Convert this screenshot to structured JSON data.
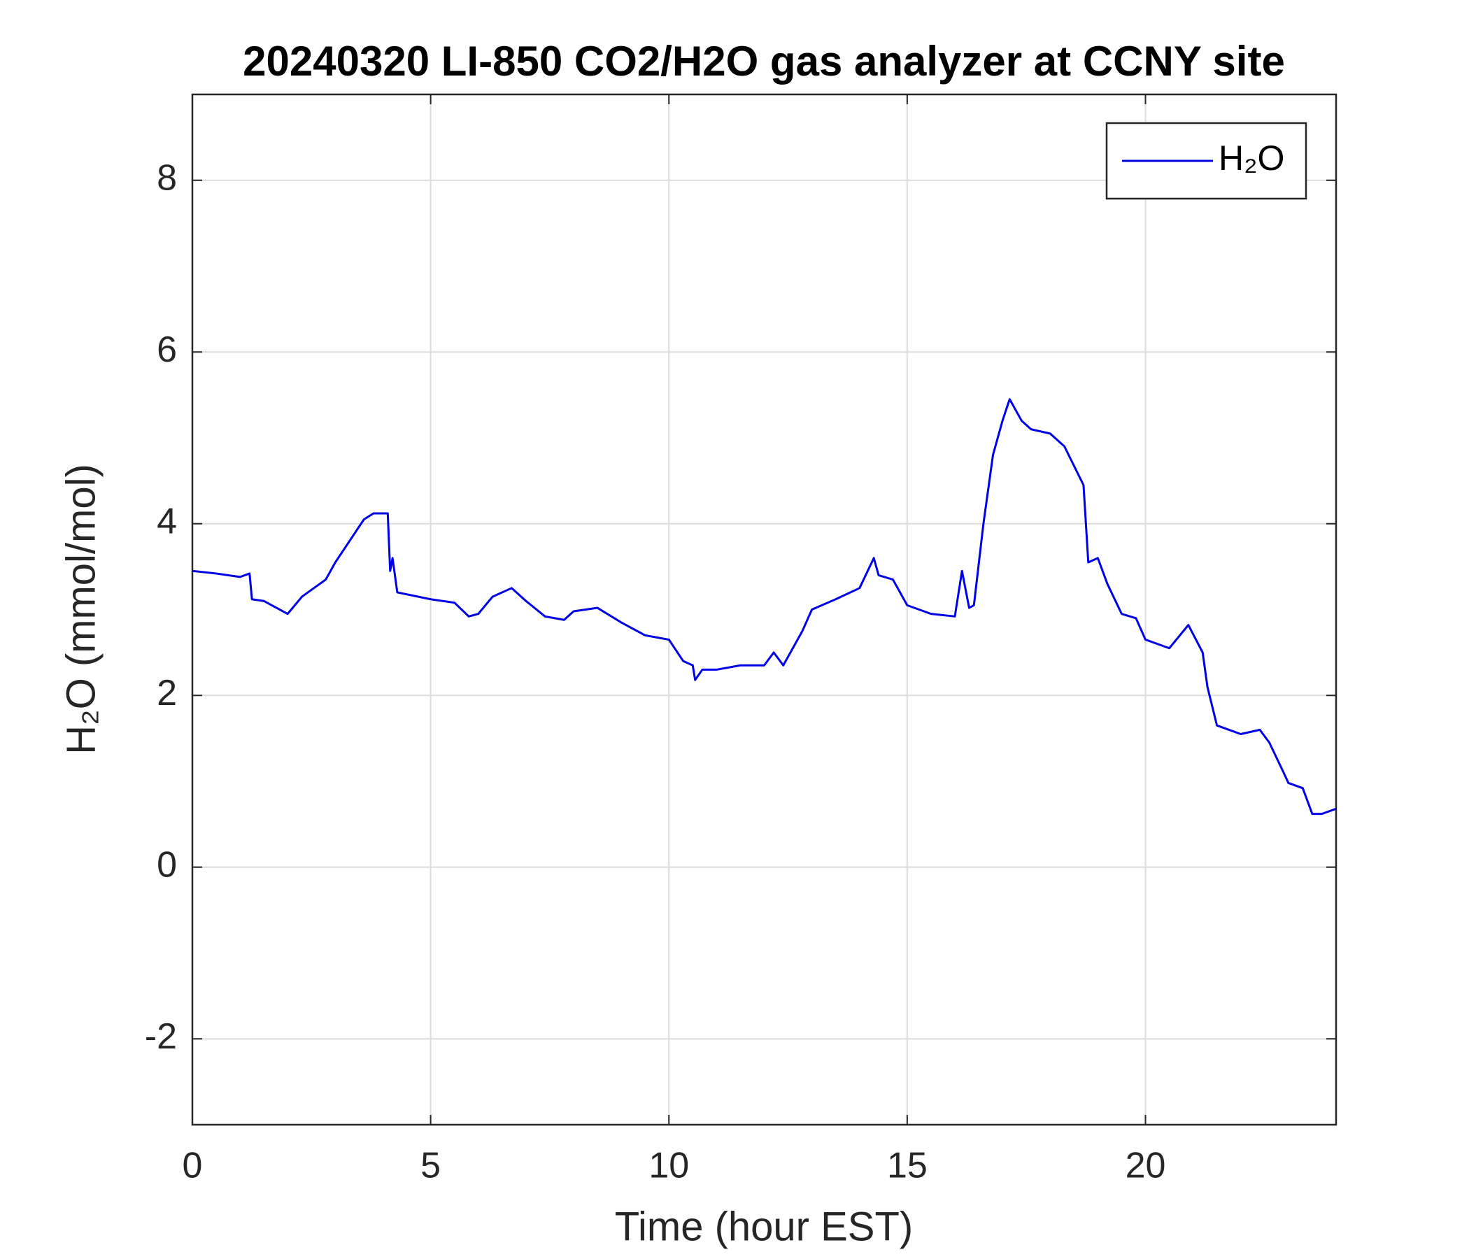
{
  "chart_data": {
    "type": "line",
    "title": "20240320 LI-850 CO2/H2O gas analyzer at CCNY site",
    "x_label": "Time (hour EST)",
    "y_label": "H₂O (mmol/mol)",
    "x": [
      0,
      0.5,
      1.0,
      1.2,
      1.25,
      1.5,
      2.0,
      2.3,
      2.8,
      3.0,
      3.3,
      3.6,
      3.8,
      4.1,
      4.15,
      4.2,
      4.3,
      5.0,
      5.5,
      5.8,
      6.0,
      6.3,
      6.7,
      7.0,
      7.4,
      7.8,
      8.0,
      8.5,
      9.0,
      9.5,
      10.0,
      10.3,
      10.5,
      10.55,
      10.7,
      11.0,
      11.5,
      12.0,
      12.2,
      12.4,
      12.6,
      12.8,
      13.0,
      13.5,
      14.0,
      14.3,
      14.4,
      14.7,
      15.0,
      15.5,
      16.0,
      16.15,
      16.3,
      16.4,
      16.6,
      16.8,
      17.0,
      17.15,
      17.4,
      17.6,
      18.0,
      18.3,
      18.7,
      18.8,
      19.0,
      19.2,
      19.5,
      19.8,
      20.0,
      20.5,
      20.9,
      21.2,
      21.3,
      21.5,
      22.0,
      22.4,
      22.6,
      22.9,
      23.0,
      23.3,
      23.5,
      23.7,
      24
    ],
    "series": [
      {
        "name": "H₂O",
        "color": "#0000e6",
        "values": [
          3.45,
          3.42,
          3.38,
          3.42,
          3.12,
          3.1,
          2.95,
          3.15,
          3.35,
          3.55,
          3.8,
          4.05,
          4.12,
          4.12,
          3.45,
          3.6,
          3.2,
          3.12,
          3.08,
          2.92,
          2.95,
          3.15,
          3.25,
          3.1,
          2.92,
          2.88,
          2.98,
          3.02,
          2.85,
          2.7,
          2.65,
          2.4,
          2.35,
          2.18,
          2.3,
          2.3,
          2.35,
          2.35,
          2.5,
          2.35,
          2.55,
          2.75,
          3.0,
          3.12,
          3.25,
          3.6,
          3.4,
          3.35,
          3.05,
          2.95,
          2.92,
          3.45,
          3.02,
          3.05,
          4.0,
          4.8,
          5.2,
          5.45,
          5.2,
          5.1,
          5.05,
          4.9,
          4.45,
          3.55,
          3.6,
          3.3,
          2.95,
          2.9,
          2.65,
          2.55,
          2.82,
          2.5,
          2.1,
          1.65,
          1.55,
          1.6,
          1.45,
          1.1,
          0.98,
          0.92,
          0.62,
          0.62,
          0.68
        ]
      }
    ],
    "xlim": [
      0,
      24
    ],
    "ylim": [
      -3,
      9
    ],
    "xticks": [
      0,
      5,
      10,
      15,
      20
    ],
    "yticks": [
      -2,
      0,
      2,
      4,
      6,
      8
    ],
    "grid": true,
    "legend": "northeast"
  }
}
